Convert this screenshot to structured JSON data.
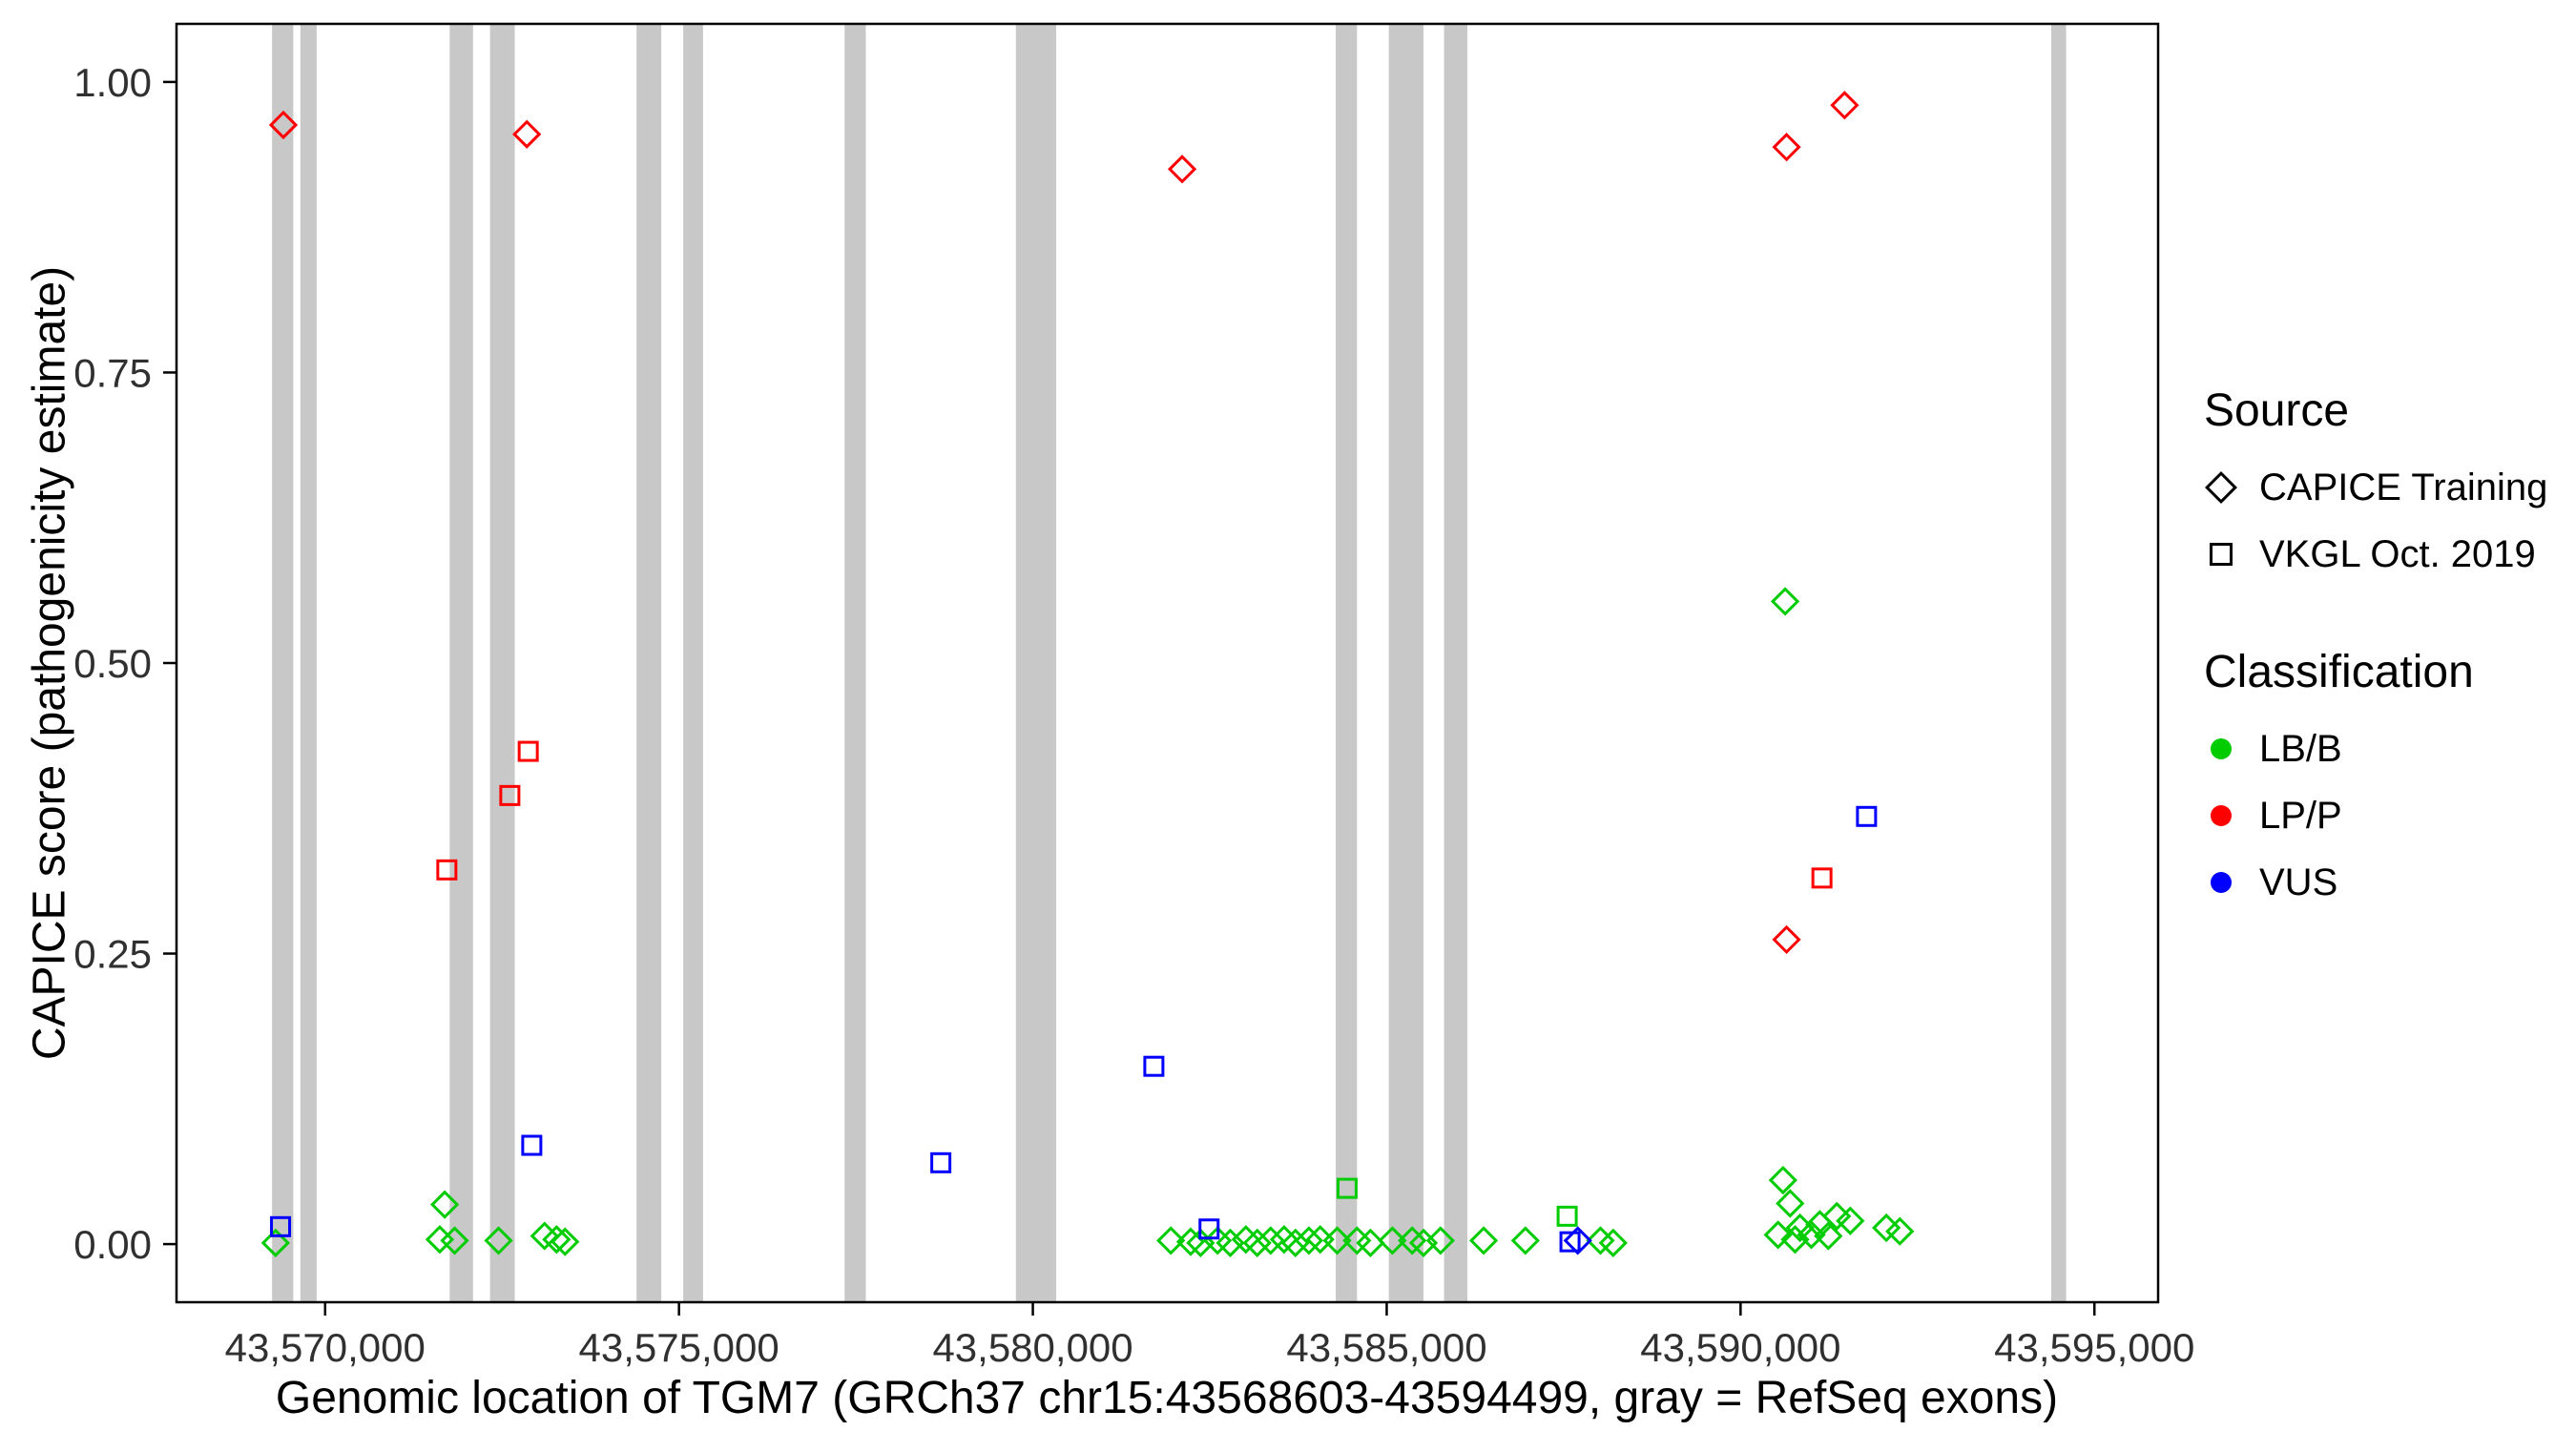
{
  "chart_data": {
    "type": "scatter",
    "title": "",
    "xlabel": "Genomic location of TGM7 (GRCh37 chr15:43568603-43594499, gray = RefSeq exons)",
    "ylabel": "CAPICE score (pathogenicity estimate)",
    "xlim": [
      43567900,
      43595900
    ],
    "ylim": [
      -0.05,
      1.05
    ],
    "grid": "off",
    "panel_border_color": "#000000",
    "exon_color": "#c8c8c8",
    "x_ticks": [
      {
        "value": 43570000,
        "label": "43,570,000"
      },
      {
        "value": 43575000,
        "label": "43,575,000"
      },
      {
        "value": 43580000,
        "label": "43,580,000"
      },
      {
        "value": 43585000,
        "label": "43,585,000"
      },
      {
        "value": 43590000,
        "label": "43,590,000"
      },
      {
        "value": 43595000,
        "label": "43,595,000"
      }
    ],
    "y_ticks": [
      {
        "value": 0.0,
        "label": "0.00"
      },
      {
        "value": 0.25,
        "label": "0.25"
      },
      {
        "value": 0.5,
        "label": "0.50"
      },
      {
        "value": 0.75,
        "label": "0.75"
      },
      {
        "value": 1.0,
        "label": "1.00"
      }
    ],
    "refseq_exons": [
      [
        43569250,
        43569550
      ],
      [
        43569650,
        43569880
      ],
      [
        43571760,
        43572090
      ],
      [
        43572330,
        43572680
      ],
      [
        43574400,
        43574750
      ],
      [
        43575060,
        43575340
      ],
      [
        43577340,
        43577640
      ],
      [
        43579760,
        43580330
      ],
      [
        43584280,
        43584580
      ],
      [
        43585030,
        43585520
      ],
      [
        43585810,
        43586140
      ],
      [
        43594390,
        43594600
      ]
    ],
    "series": [
      {
        "id": "lbb-capice-training",
        "source": "CAPICE Training",
        "classification": "LB/B",
        "shape": "diamond",
        "color": "#00cc00",
        "points": [
          [
            43569300,
            0.001
          ],
          [
            43571620,
            0.004
          ],
          [
            43571690,
            0.034
          ],
          [
            43571830,
            0.003
          ],
          [
            43572450,
            0.003
          ],
          [
            43573100,
            0.007
          ],
          [
            43573270,
            0.004
          ],
          [
            43573390,
            0.002
          ],
          [
            43581950,
            0.003
          ],
          [
            43582230,
            0.002
          ],
          [
            43582370,
            0.001
          ],
          [
            43582610,
            0.003
          ],
          [
            43582790,
            0.001
          ],
          [
            43583010,
            0.004
          ],
          [
            43583170,
            0.001
          ],
          [
            43583360,
            0.003
          ],
          [
            43583550,
            0.004
          ],
          [
            43583710,
            0.001
          ],
          [
            43583900,
            0.003
          ],
          [
            43584060,
            0.004
          ],
          [
            43584300,
            0.003
          ],
          [
            43584580,
            0.003
          ],
          [
            43584770,
            0.001
          ],
          [
            43585080,
            0.003
          ],
          [
            43585360,
            0.003
          ],
          [
            43585520,
            0.001
          ],
          [
            43585760,
            0.003
          ],
          [
            43586370,
            0.003
          ],
          [
            43586960,
            0.003
          ],
          [
            43588020,
            0.003
          ],
          [
            43588200,
            0.001
          ],
          [
            43590530,
            0.008
          ],
          [
            43590600,
            0.055
          ],
          [
            43590630,
            0.553
          ],
          [
            43590700,
            0.035
          ],
          [
            43590770,
            0.004
          ],
          [
            43590840,
            0.014
          ],
          [
            43591000,
            0.008
          ],
          [
            43591120,
            0.017
          ],
          [
            43591240,
            0.007
          ],
          [
            43591360,
            0.024
          ],
          [
            43591550,
            0.02
          ],
          [
            43592060,
            0.014
          ],
          [
            43592250,
            0.011
          ]
        ]
      },
      {
        "id": "lpp-capice-training",
        "source": "CAPICE Training",
        "classification": "LP/P",
        "shape": "diamond",
        "color": "#ff0000",
        "points": [
          [
            43569410,
            0.963
          ],
          [
            43572850,
            0.955
          ],
          [
            43582110,
            0.925
          ],
          [
            43590650,
            0.944
          ],
          [
            43590650,
            0.262
          ],
          [
            43591470,
            0.98
          ]
        ]
      },
      {
        "id": "vus-capice-training",
        "source": "CAPICE Training",
        "classification": "VUS",
        "shape": "diamond",
        "color": "#0000ff",
        "points": [
          [
            43587700,
            0.003
          ]
        ]
      },
      {
        "id": "lbb-vkgl",
        "source": "VKGL Oct. 2019",
        "classification": "LB/B",
        "shape": "square",
        "color": "#00cc00",
        "points": [
          [
            43584440,
            0.048
          ],
          [
            43587550,
            0.024
          ]
        ]
      },
      {
        "id": "lpp-vkgl",
        "source": "VKGL Oct. 2019",
        "classification": "LP/P",
        "shape": "square",
        "color": "#ff0000",
        "points": [
          [
            43571720,
            0.322
          ],
          [
            43572610,
            0.386
          ],
          [
            43572870,
            0.424
          ],
          [
            43591150,
            0.315
          ]
        ]
      },
      {
        "id": "vus-vkgl",
        "source": "VKGL Oct. 2019",
        "classification": "VUS",
        "shape": "square",
        "color": "#0000ff",
        "points": [
          [
            43569370,
            0.015
          ],
          [
            43572920,
            0.085
          ],
          [
            43578700,
            0.07
          ],
          [
            43581710,
            0.153
          ],
          [
            43582490,
            0.013
          ],
          [
            43587590,
            0.002
          ],
          [
            43591780,
            0.368
          ]
        ]
      }
    ],
    "legend": {
      "source": {
        "title": "Source",
        "items": [
          {
            "label": "CAPICE Training",
            "shape": "diamond"
          },
          {
            "label": "VKGL Oct. 2019",
            "shape": "square"
          }
        ]
      },
      "classification": {
        "title": "Classification",
        "items": [
          {
            "label": "LB/B",
            "color": "#00cc00"
          },
          {
            "label": "LP/P",
            "color": "#ff0000"
          },
          {
            "label": "VUS",
            "color": "#0000ff"
          }
        ]
      }
    }
  }
}
